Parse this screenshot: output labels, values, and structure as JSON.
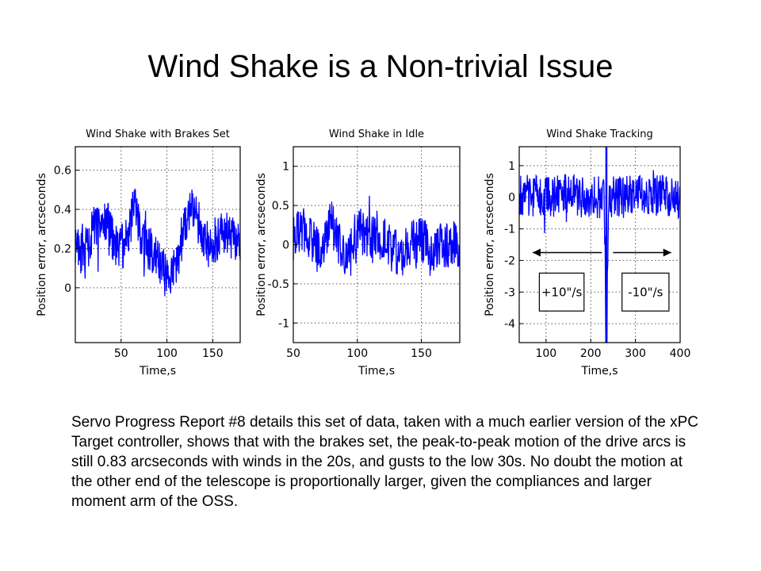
{
  "slide": {
    "title": "Wind Shake is a Non-trivial Issue",
    "body": "Servo Progress Report #8 details this set of data, taken with a much earlier version of the xPC Target controller, shows that with the brakes set, the peak-to-peak motion of the drive arcs is still 0.83 arcseconds with winds in the 20s, and gusts to the low 30s. No doubt the motion at the other end of the telescope is proportionally larger, given the compliances and larger moment arm of the OSS."
  },
  "colors": {
    "trace": "#0000ff",
    "axes": "#000000"
  },
  "chart_data": [
    {
      "type": "line",
      "title": "Wind Shake with Brakes Set",
      "xlabel": "Time,s",
      "ylabel": "Position error, arcseconds",
      "xlim": [
        0,
        180
      ],
      "ylim": [
        -0.28,
        0.72
      ],
      "xticks": [
        50,
        100,
        150
      ],
      "yticks": [
        0,
        0.2,
        0.4,
        0.6
      ],
      "grid": true,
      "series": [
        {
          "x": [
            0,
            10,
            20,
            30,
            40,
            50,
            60,
            65,
            70,
            80,
            90,
            100,
            110,
            120,
            130,
            140,
            150,
            160,
            170,
            180
          ],
          "y": [
            0.25,
            0.15,
            0.3,
            0.35,
            0.25,
            0.2,
            0.3,
            0.45,
            0.3,
            0.2,
            0.15,
            0.05,
            0.1,
            0.35,
            0.4,
            0.25,
            0.2,
            0.3,
            0.25,
            0.2
          ]
        }
      ]
    },
    {
      "type": "line",
      "title": "Wind Shake in Idle",
      "xlabel": "Time,s",
      "ylabel": "Position error, arcseconds",
      "xlim": [
        50,
        180
      ],
      "ylim": [
        -1.25,
        1.25
      ],
      "xticks": [
        50,
        100,
        150
      ],
      "yticks": [
        -1,
        -0.5,
        0,
        0.5,
        1
      ],
      "grid": true,
      "series": [
        {
          "x": [
            50,
            60,
            70,
            80,
            90,
            100,
            110,
            120,
            130,
            140,
            150,
            160,
            170,
            180
          ],
          "y": [
            0.1,
            0.2,
            -0.1,
            0.3,
            -0.2,
            0.2,
            0.05,
            0.1,
            -0.1,
            0,
            0.05,
            -0.05,
            0,
            0
          ]
        }
      ]
    },
    {
      "type": "line",
      "title": "Wind Shake Tracking",
      "xlabel": "Time,s",
      "ylabel": "Position error, arcseconds",
      "xlim": [
        40,
        400
      ],
      "ylim": [
        -4.6,
        1.6
      ],
      "xticks": [
        100,
        200,
        300,
        400
      ],
      "yticks": [
        -4,
        -3,
        -2,
        -1,
        0,
        1
      ],
      "grid": true,
      "series": [
        {
          "x": [
            40,
            100,
            150,
            200,
            230,
            235,
            240,
            300,
            350,
            400
          ],
          "y": [
            0.1,
            0,
            0.1,
            0,
            0,
            -4.6,
            0,
            0,
            0.1,
            0
          ]
        }
      ],
      "annotations": [
        "+10\"/s",
        "-10\"/s"
      ]
    }
  ]
}
